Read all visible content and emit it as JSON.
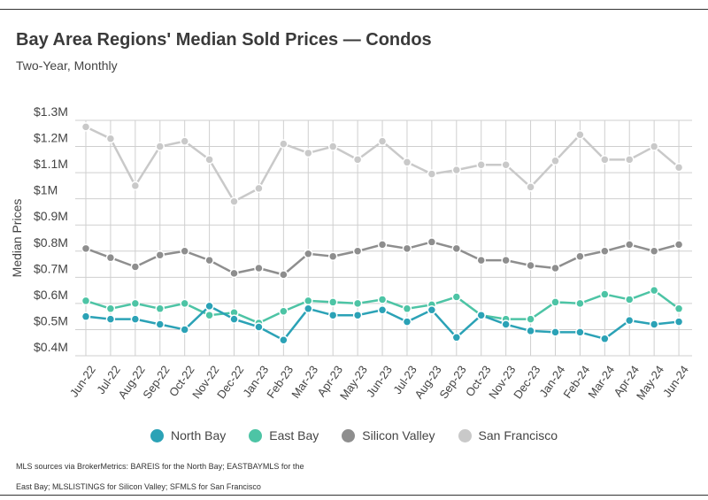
{
  "header": {
    "title": "Bay Area Regions' Median Sold Prices — Condos",
    "subtitle": "Two-Year, Monthly"
  },
  "footnote": "MLS sources via BrokerMetrics: BAREIS for the North Bay; EASTBAYMLS for the East Bay; MLSLISTINGS for Silicon Valley; SFMLS for San Francisco",
  "chart_data": {
    "type": "line",
    "title": "Bay Area Regions' Median Sold Prices — Condos",
    "subtitle": "Two-Year, Monthly",
    "xlabel": "",
    "ylabel": "Median Prices",
    "ylim": [
      0.4,
      1.3
    ],
    "yticks": [
      {
        "v": 0.4,
        "label": "$0.4M"
      },
      {
        "v": 0.5,
        "label": "$0.5M"
      },
      {
        "v": 0.6,
        "label": "$0.6M"
      },
      {
        "v": 0.7,
        "label": "$0.7M"
      },
      {
        "v": 0.8,
        "label": "$0.8M"
      },
      {
        "v": 0.9,
        "label": "$0.9M"
      },
      {
        "v": 1.0,
        "label": "$1M"
      },
      {
        "v": 1.1,
        "label": "$1.1M"
      },
      {
        "v": 1.2,
        "label": "$1.2M"
      },
      {
        "v": 1.3,
        "label": "$1.3M"
      }
    ],
    "categories": [
      "Jun-22",
      "Jul-22",
      "Aug-22",
      "Sep-22",
      "Oct-22",
      "Nov-22",
      "Dec-22",
      "Jan-23",
      "Feb-23",
      "Mar-23",
      "Apr-23",
      "May-23",
      "Jun-23",
      "Jul-23",
      "Aug-23",
      "Sep-23",
      "Oct-23",
      "Nov-23",
      "Dec-23",
      "Jan-24",
      "Feb-24",
      "Mar-24",
      "Apr-24",
      "May-24",
      "Jun-24"
    ],
    "grid": true,
    "legend_position": "bottom",
    "series": [
      {
        "name": "North Bay",
        "color": "#2ba2b6",
        "values": [
          0.55,
          0.54,
          0.54,
          0.52,
          0.5,
          0.59,
          0.54,
          0.51,
          0.46,
          0.58,
          0.555,
          0.555,
          0.575,
          0.53,
          0.575,
          0.47,
          0.555,
          0.52,
          0.495,
          0.49,
          0.49,
          0.465,
          0.535,
          0.52,
          0.53
        ]
      },
      {
        "name": "East Bay",
        "color": "#4dc4a5",
        "values": [
          0.61,
          0.58,
          0.6,
          0.58,
          0.6,
          0.555,
          0.565,
          0.525,
          0.57,
          0.61,
          0.605,
          0.6,
          0.615,
          0.58,
          0.595,
          0.625,
          0.555,
          0.54,
          0.54,
          0.605,
          0.6,
          0.635,
          0.615,
          0.65,
          0.58
        ]
      },
      {
        "name": "Silicon Valley",
        "color": "#8e8e8e",
        "values": [
          0.81,
          0.775,
          0.74,
          0.785,
          0.8,
          0.765,
          0.715,
          0.735,
          0.71,
          0.79,
          0.78,
          0.8,
          0.825,
          0.81,
          0.835,
          0.81,
          0.765,
          0.765,
          0.745,
          0.735,
          0.78,
          0.8,
          0.825,
          0.8,
          0.825
        ]
      },
      {
        "name": "San Francisco",
        "color": "#c9c9c9",
        "values": [
          1.275,
          1.23,
          1.05,
          1.2,
          1.22,
          1.15,
          0.99,
          1.04,
          1.21,
          1.175,
          1.2,
          1.15,
          1.22,
          1.14,
          1.095,
          1.11,
          1.13,
          1.13,
          1.045,
          1.145,
          1.245,
          1.15,
          1.15,
          1.2,
          1.12
        ]
      }
    ]
  }
}
